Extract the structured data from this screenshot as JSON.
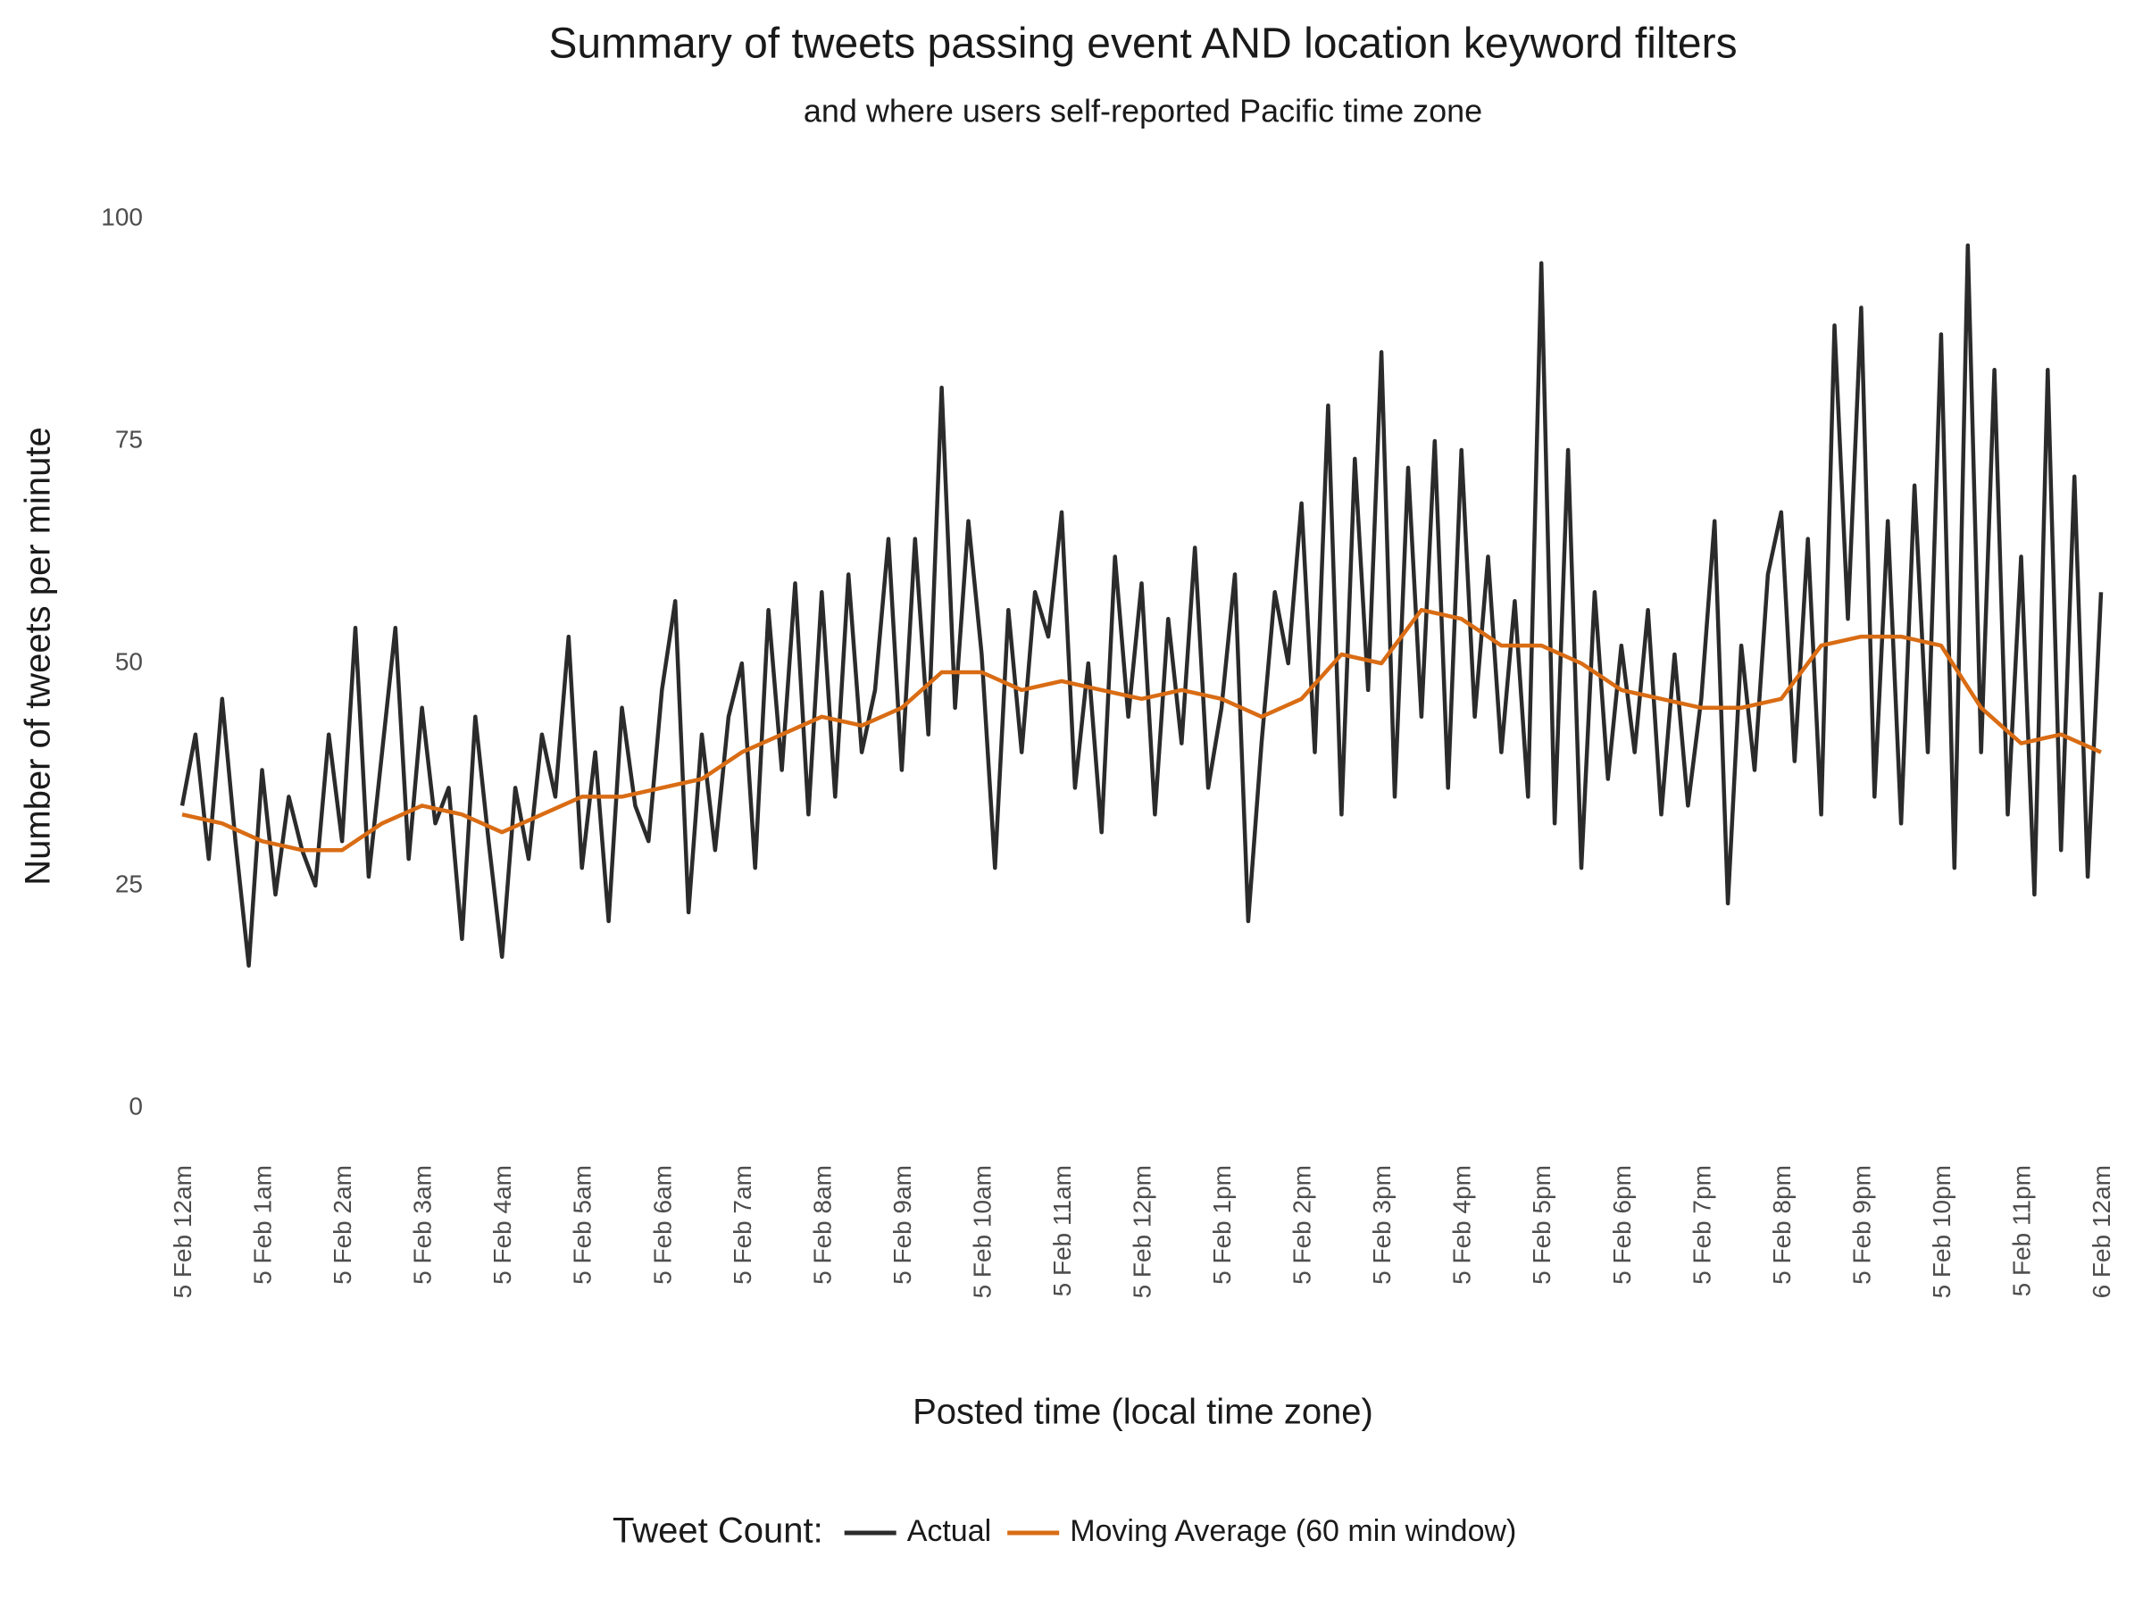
{
  "chart_data": {
    "type": "line",
    "title": "Summary of tweets passing event AND location keyword filters",
    "subtitle": "and where users self-reported Pacific time zone",
    "x_label": "Posted time (local time zone)",
    "y_label": "Number of tweets per minute",
    "legend_title": "Tweet Count:",
    "legend_position": "bottom",
    "grid": false,
    "xlim": [
      0,
      1440
    ],
    "ylim": [
      0,
      100
    ],
    "yticks": [
      0,
      25,
      50,
      75,
      100
    ],
    "xticks": [
      {
        "value": 0,
        "label": "5 Feb 12am"
      },
      {
        "value": 60,
        "label": "5 Feb 1am"
      },
      {
        "value": 120,
        "label": "5 Feb 2am"
      },
      {
        "value": 180,
        "label": "5 Feb 3am"
      },
      {
        "value": 240,
        "label": "5 Feb 4am"
      },
      {
        "value": 300,
        "label": "5 Feb 5am"
      },
      {
        "value": 360,
        "label": "5 Feb 6am"
      },
      {
        "value": 420,
        "label": "5 Feb 7am"
      },
      {
        "value": 480,
        "label": "5 Feb 8am"
      },
      {
        "value": 540,
        "label": "5 Feb 9am"
      },
      {
        "value": 600,
        "label": "5 Feb 10am"
      },
      {
        "value": 660,
        "label": "5 Feb 11am"
      },
      {
        "value": 720,
        "label": "5 Feb 12pm"
      },
      {
        "value": 780,
        "label": "5 Feb 1pm"
      },
      {
        "value": 840,
        "label": "5 Feb 2pm"
      },
      {
        "value": 900,
        "label": "5 Feb 3pm"
      },
      {
        "value": 960,
        "label": "5 Feb 4pm"
      },
      {
        "value": 1020,
        "label": "5 Feb 5pm"
      },
      {
        "value": 1080,
        "label": "5 Feb 6pm"
      },
      {
        "value": 1140,
        "label": "5 Feb 7pm"
      },
      {
        "value": 1200,
        "label": "5 Feb 8pm"
      },
      {
        "value": 1260,
        "label": "5 Feb 9pm"
      },
      {
        "value": 1320,
        "label": "5 Feb 10pm"
      },
      {
        "value": 1380,
        "label": "5 Feb 11pm"
      },
      {
        "value": 1440,
        "label": "6 Feb 12am"
      }
    ],
    "series": [
      {
        "name": "Actual",
        "color": "#2b2b2b",
        "x": [
          0,
          10,
          20,
          30,
          40,
          50,
          60,
          70,
          80,
          90,
          100,
          110,
          120,
          130,
          140,
          150,
          160,
          170,
          180,
          190,
          200,
          210,
          220,
          230,
          240,
          250,
          260,
          270,
          280,
          290,
          300,
          310,
          320,
          330,
          340,
          350,
          360,
          370,
          380,
          390,
          400,
          410,
          420,
          430,
          440,
          450,
          460,
          470,
          480,
          490,
          500,
          510,
          520,
          530,
          540,
          550,
          560,
          570,
          580,
          590,
          600,
          610,
          620,
          630,
          640,
          650,
          660,
          670,
          680,
          690,
          700,
          710,
          720,
          730,
          740,
          750,
          760,
          770,
          780,
          790,
          800,
          810,
          820,
          830,
          840,
          850,
          860,
          870,
          880,
          890,
          900,
          910,
          920,
          930,
          940,
          950,
          960,
          970,
          980,
          990,
          1000,
          1010,
          1020,
          1030,
          1040,
          1050,
          1060,
          1070,
          1080,
          1090,
          1100,
          1110,
          1120,
          1130,
          1140,
          1150,
          1160,
          1170,
          1180,
          1190,
          1200,
          1210,
          1220,
          1230,
          1240,
          1250,
          1260,
          1270,
          1280,
          1290,
          1300,
          1310,
          1320,
          1330,
          1340,
          1350,
          1360,
          1370,
          1380,
          1390,
          1400,
          1410,
          1420,
          1430,
          1440
        ],
        "values": [
          34,
          42,
          28,
          46,
          30,
          16,
          38,
          24,
          35,
          29,
          25,
          42,
          30,
          54,
          26,
          40,
          54,
          28,
          45,
          32,
          36,
          19,
          44,
          30,
          17,
          36,
          28,
          42,
          35,
          53,
          27,
          40,
          21,
          45,
          34,
          30,
          47,
          57,
          22,
          42,
          29,
          44,
          50,
          27,
          56,
          38,
          59,
          33,
          58,
          35,
          60,
          40,
          47,
          64,
          38,
          64,
          42,
          81,
          45,
          66,
          51,
          27,
          56,
          40,
          58,
          53,
          67,
          36,
          50,
          31,
          62,
          44,
          59,
          33,
          55,
          41,
          63,
          36,
          45,
          60,
          21,
          41,
          58,
          50,
          68,
          40,
          79,
          33,
          73,
          47,
          85,
          35,
          72,
          44,
          75,
          36,
          74,
          44,
          62,
          40,
          57,
          35,
          95,
          32,
          74,
          27,
          58,
          37,
          52,
          40,
          56,
          33,
          51,
          34,
          46,
          66,
          23,
          52,
          38,
          60,
          67,
          39,
          64,
          33,
          88,
          55,
          90,
          35,
          66,
          32,
          70,
          40,
          87,
          27,
          97,
          40,
          83,
          33,
          62,
          24,
          83,
          29,
          71,
          26,
          58
        ]
      },
      {
        "name": "Moving Average (60 min window)",
        "color": "#d96c14",
        "x": [
          0,
          30,
          60,
          90,
          120,
          150,
          180,
          210,
          240,
          270,
          300,
          330,
          360,
          390,
          420,
          450,
          480,
          510,
          540,
          570,
          600,
          630,
          660,
          690,
          720,
          750,
          780,
          810,
          840,
          870,
          900,
          930,
          960,
          990,
          1020,
          1050,
          1080,
          1110,
          1140,
          1170,
          1200,
          1230,
          1260,
          1290,
          1320,
          1350,
          1380,
          1410,
          1440
        ],
        "values": [
          33,
          32,
          30,
          29,
          29,
          32,
          34,
          33,
          31,
          33,
          35,
          35,
          36,
          37,
          40,
          42,
          44,
          43,
          45,
          49,
          49,
          47,
          48,
          47,
          46,
          47,
          46,
          44,
          46,
          51,
          50,
          56,
          55,
          52,
          52,
          50,
          47,
          46,
          45,
          45,
          46,
          52,
          53,
          53,
          52,
          45,
          41,
          42,
          40
        ]
      }
    ]
  }
}
